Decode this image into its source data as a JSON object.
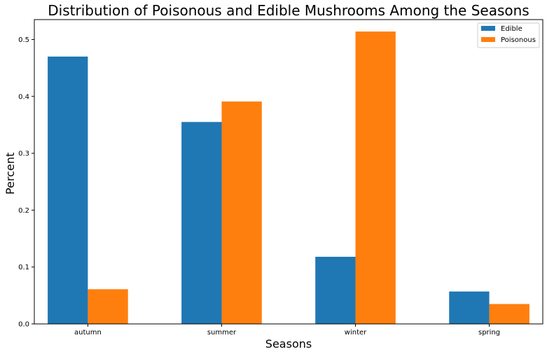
{
  "chart_data": {
    "type": "bar",
    "title": "Distribution of Poisonous and Edible Mushrooms Among the Seasons",
    "xlabel": "Seasons",
    "ylabel": "Percent",
    "categories": [
      "autumn",
      "summer",
      "winter",
      "spring"
    ],
    "series": [
      {
        "name": "Edible",
        "values": [
          0.47,
          0.355,
          0.118,
          0.057
        ],
        "color": "#1f77b4"
      },
      {
        "name": "Poisonous",
        "values": [
          0.061,
          0.391,
          0.514,
          0.035
        ],
        "color": "#ff7f0e"
      }
    ],
    "ylim": [
      0,
      0.535
    ],
    "yticks": [
      0.0,
      0.1,
      0.2,
      0.3,
      0.4,
      0.5
    ],
    "ytick_labels": [
      "0.0",
      "0.1",
      "0.2",
      "0.3",
      "0.4",
      "0.5"
    ],
    "grid": false,
    "legend": "top-right"
  }
}
